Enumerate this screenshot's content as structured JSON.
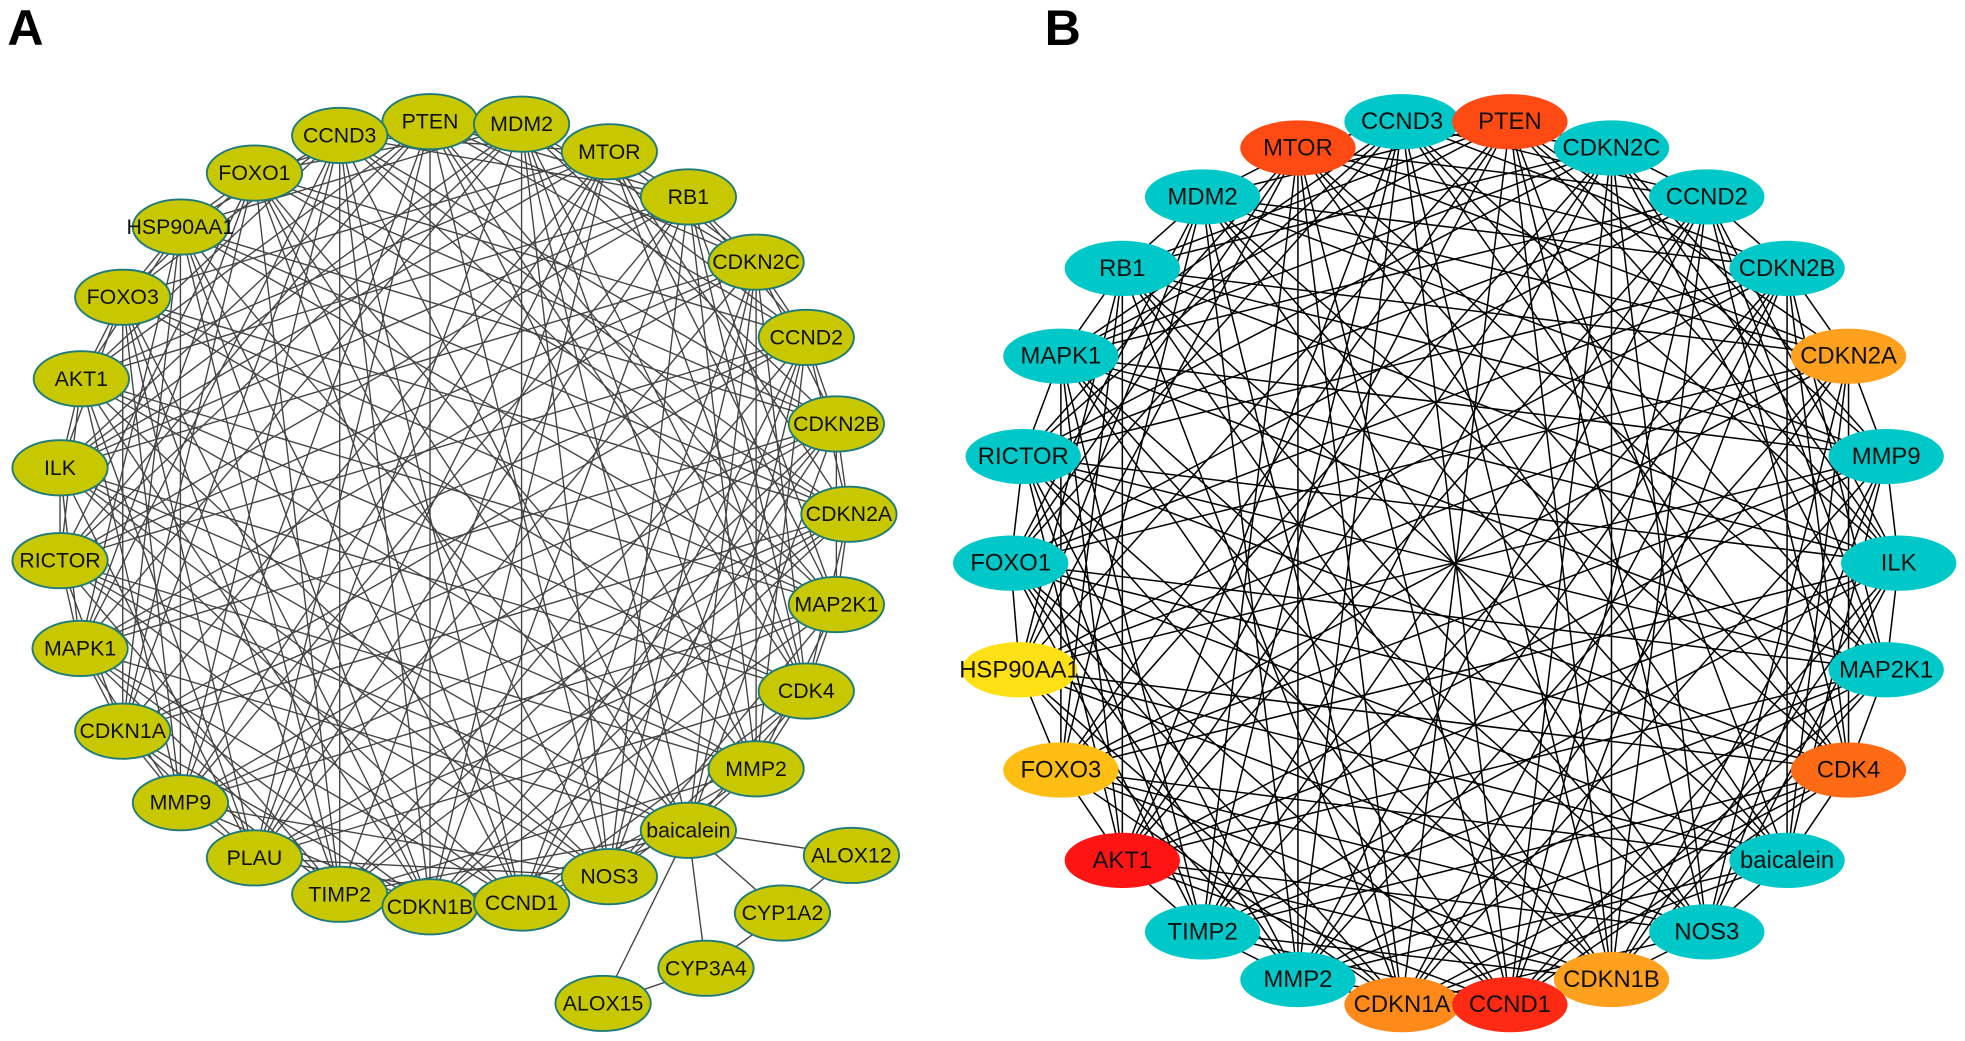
{
  "panels": [
    {
      "label": "A",
      "node_color": "#c8c800",
      "node_border": "#1f7a7a",
      "edge_color": "#444444",
      "nodes": [
        {
          "id": "PTEN",
          "pos": [
            342,
            97
          ]
        },
        {
          "id": "CCND3",
          "pos": [
            270,
            108
          ]
        },
        {
          "id": "MDM2",
          "pos": [
            415,
            99
          ]
        },
        {
          "id": "MTOR",
          "pos": [
            485,
            121
          ]
        },
        {
          "id": "FOXO1",
          "pos": [
            202,
            138
          ]
        },
        {
          "id": "RB1",
          "pos": [
            548,
            157
          ]
        },
        {
          "id": "HSP90AA1",
          "pos": [
            143,
            181
          ]
        },
        {
          "id": "CDKN2C",
          "pos": [
            602,
            209
          ]
        },
        {
          "id": "FOXO3",
          "pos": [
            97,
            237
          ]
        },
        {
          "id": "CCND2",
          "pos": [
            642,
            269
          ]
        },
        {
          "id": "AKT1",
          "pos": [
            64,
            302
          ]
        },
        {
          "id": "CDKN2B",
          "pos": [
            666,
            338
          ]
        },
        {
          "id": "ILK",
          "pos": [
            47,
            373
          ]
        },
        {
          "id": "CDKN2A",
          "pos": [
            676,
            410
          ]
        },
        {
          "id": "RICTOR",
          "pos": [
            47,
            447
          ]
        },
        {
          "id": "MAP2K1",
          "pos": [
            666,
            482
          ]
        },
        {
          "id": "MAPK1",
          "pos": [
            63,
            517
          ]
        },
        {
          "id": "CDK4",
          "pos": [
            642,
            551
          ]
        },
        {
          "id": "CDKN1A",
          "pos": [
            97,
            583
          ]
        },
        {
          "id": "MMP2",
          "pos": [
            602,
            613
          ]
        },
        {
          "id": "MMP9",
          "pos": [
            143,
            640
          ]
        },
        {
          "id": "baicalein",
          "pos": [
            548,
            662
          ]
        },
        {
          "id": "PLAU",
          "pos": [
            202,
            684
          ]
        },
        {
          "id": "TIMP2",
          "pos": [
            270,
            713
          ]
        },
        {
          "id": "NOS3",
          "pos": [
            485,
            699
          ]
        },
        {
          "id": "CDKN1B",
          "pos": [
            342,
            723
          ]
        },
        {
          "id": "CCND1",
          "pos": [
            415,
            720
          ]
        },
        {
          "id": "ALOX12",
          "pos": [
            678,
            682
          ],
          "peripheral": true
        },
        {
          "id": "CYP1A2",
          "pos": [
            623,
            728
          ],
          "peripheral": true
        },
        {
          "id": "CYP3A4",
          "pos": [
            562,
            772
          ],
          "peripheral": true
        },
        {
          "id": "ALOX15",
          "pos": [
            480,
            800
          ],
          "peripheral": true
        }
      ],
      "extra_edges": [
        [
          "baicalein",
          "ALOX12"
        ],
        [
          "baicalein",
          "CYP1A2"
        ],
        [
          "baicalein",
          "CYP3A4"
        ],
        [
          "baicalein",
          "ALOX15"
        ],
        [
          "CYP3A4",
          "CYP1A2"
        ],
        [
          "ALOX15",
          "CYP3A4"
        ],
        [
          "CYP1A2",
          "ALOX12"
        ]
      ]
    },
    {
      "label": "B",
      "node_color": "#00c8c8",
      "node_border": "none",
      "edge_color": "#000000",
      "nodes": [
        {
          "id": "CCND3",
          "pos": [
            1117,
            97
          ]
        },
        {
          "id": "PTEN",
          "pos": [
            1203,
            97
          ],
          "color": "#ff4a14"
        },
        {
          "id": "MTOR",
          "pos": [
            1034,
            118
          ],
          "color": "#ff4a14"
        },
        {
          "id": "CDKN2C",
          "pos": [
            1284,
            118
          ]
        },
        {
          "id": "MDM2",
          "pos": [
            958,
            157
          ]
        },
        {
          "id": "CCND2",
          "pos": [
            1360,
            157
          ]
        },
        {
          "id": "RB1",
          "pos": [
            894,
            214
          ]
        },
        {
          "id": "CDKN2B",
          "pos": [
            1424,
            214
          ]
        },
        {
          "id": "MAPK1",
          "pos": [
            845,
            284
          ]
        },
        {
          "id": "CDKN2A",
          "pos": [
            1473,
            284
          ],
          "color": "#ffa01e"
        },
        {
          "id": "RICTOR",
          "pos": [
            815,
            364
          ]
        },
        {
          "id": "MMP9",
          "pos": [
            1503,
            364
          ]
        },
        {
          "id": "FOXO1",
          "pos": [
            805,
            449
          ]
        },
        {
          "id": "ILK",
          "pos": [
            1513,
            449
          ]
        },
        {
          "id": "HSP90AA1",
          "pos": [
            812,
            534
          ],
          "color": "#ffe014"
        },
        {
          "id": "MAP2K1",
          "pos": [
            1503,
            534
          ]
        },
        {
          "id": "FOXO3",
          "pos": [
            845,
            614
          ],
          "color": "#ffbe14"
        },
        {
          "id": "CDK4",
          "pos": [
            1473,
            614
          ],
          "color": "#ff6a14"
        },
        {
          "id": "AKT1",
          "pos": [
            894,
            686
          ],
          "color": "#ff1414"
        },
        {
          "id": "baicalein",
          "pos": [
            1424,
            686
          ]
        },
        {
          "id": "TIMP2",
          "pos": [
            958,
            743
          ]
        },
        {
          "id": "NOS3",
          "pos": [
            1360,
            743
          ]
        },
        {
          "id": "MMP2",
          "pos": [
            1034,
            781
          ]
        },
        {
          "id": "CDKN1B",
          "pos": [
            1284,
            781
          ],
          "color": "#ffa01e"
        },
        {
          "id": "CDKN1A",
          "pos": [
            1117,
            801
          ],
          "color": "#ff8a1a"
        },
        {
          "id": "CCND1",
          "pos": [
            1203,
            801
          ],
          "color": "#ff2a14"
        }
      ],
      "extra_edges": []
    }
  ]
}
